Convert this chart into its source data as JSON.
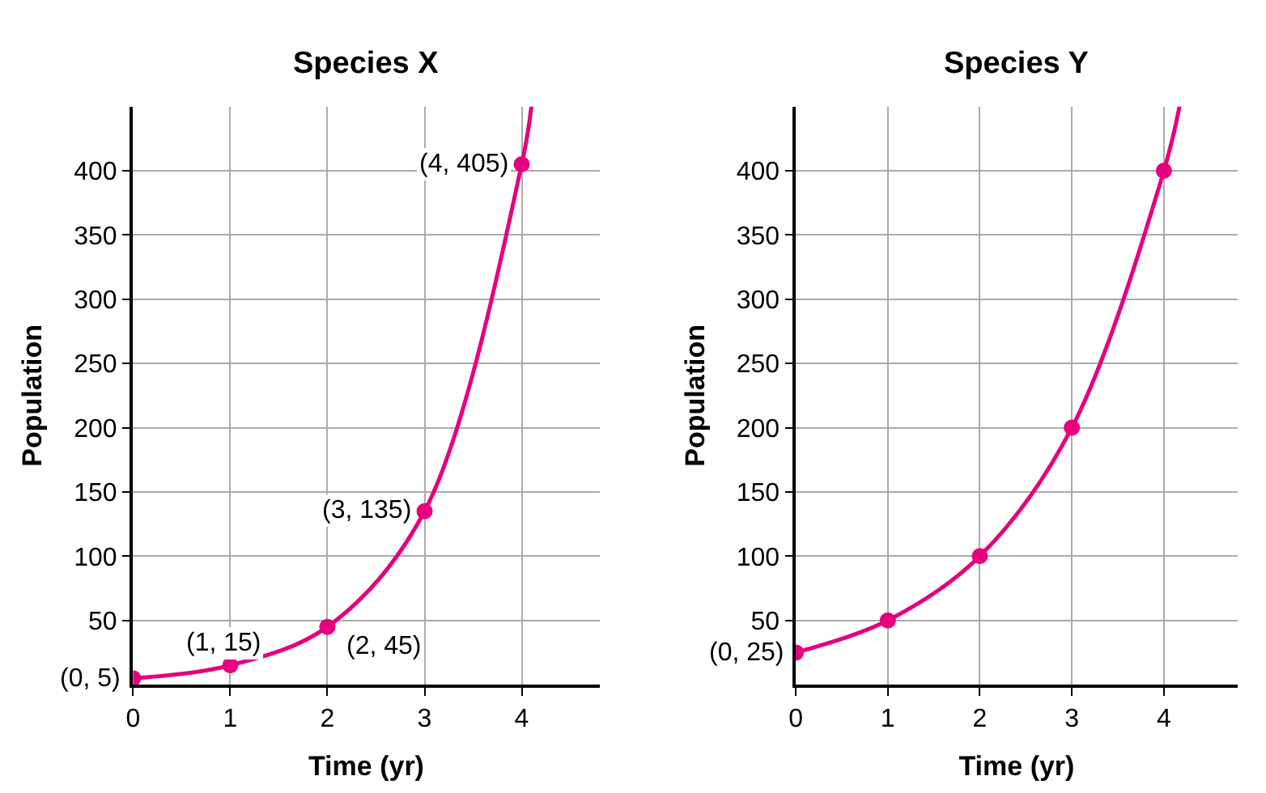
{
  "chart_data": [
    {
      "type": "line",
      "title": "Species X",
      "xlabel": "Time (yr)",
      "ylabel": "Population",
      "series": [
        {
          "color": "#e6007e",
          "x": [
            0,
            1,
            2,
            3,
            4,
            4.1
          ],
          "values": [
            5,
            15,
            45,
            135,
            405,
            450
          ],
          "marker": "none"
        },
        {
          "type": "scatter",
          "color": "#e6007e",
          "x": [
            0,
            1,
            2,
            3,
            4
          ],
          "values": [
            5,
            15,
            45,
            135,
            405
          ],
          "marker": "circle"
        }
      ],
      "annotations": [
        {
          "text": "(0, 5)",
          "x": 0,
          "y": 5
        },
        {
          "text": "(1, 15)",
          "x": 1,
          "y": 15
        },
        {
          "text": "(2, 45)",
          "x": 2,
          "y": 45
        },
        {
          "text": "(3, 135)",
          "x": 3,
          "y": 135
        },
        {
          "text": "(4, 405)",
          "x": 4,
          "y": 405
        }
      ],
      "xlim": [
        0,
        4.8
      ],
      "xticks": [
        0,
        1,
        2,
        3,
        4
      ],
      "ylim": [
        0,
        450
      ],
      "yticks": [
        50,
        100,
        150,
        200,
        250,
        300,
        350,
        400
      ],
      "grid": true
    },
    {
      "type": "line",
      "title": "Species Y",
      "xlabel": "Time (yr)",
      "ylabel": "Population",
      "series": [
        {
          "color": "#e6007e",
          "x": [
            0,
            1,
            2,
            3,
            4,
            4.17
          ],
          "values": [
            25,
            50,
            100,
            200,
            400,
            450
          ],
          "marker": "none"
        },
        {
          "type": "scatter",
          "color": "#e6007e",
          "x": [
            0,
            1,
            2,
            3,
            4
          ],
          "values": [
            25,
            50,
            100,
            200,
            400
          ],
          "marker": "circle"
        }
      ],
      "annotations": [
        {
          "text": "(0, 25)",
          "x": 0,
          "y": 25
        }
      ],
      "xlim": [
        0,
        4.8
      ],
      "xticks": [
        0,
        1,
        2,
        3,
        4
      ],
      "ylim": [
        0,
        450
      ],
      "yticks": [
        50,
        100,
        150,
        200,
        250,
        300,
        350,
        400
      ],
      "grid": true
    }
  ]
}
